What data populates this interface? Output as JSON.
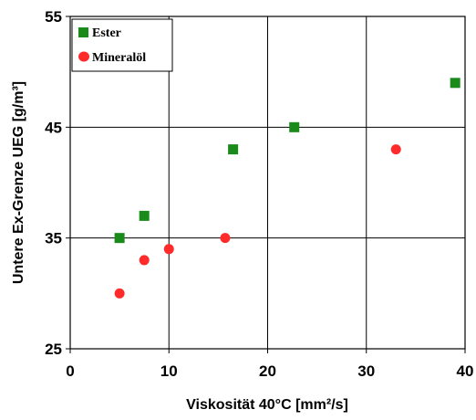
{
  "chart_data": {
    "type": "scatter",
    "xlabel": "Viskosität 40°C [mm²/s]",
    "ylabel": "Untere Ex-Grenze UEG [g/m³]",
    "xlim": [
      0,
      40
    ],
    "ylim": [
      25,
      55
    ],
    "x_ticks": [
      "0",
      "10",
      "20",
      "30",
      "40"
    ],
    "y_ticks": [
      "25",
      "35",
      "45",
      "55"
    ],
    "x_tick_values": [
      0,
      10,
      20,
      30,
      40
    ],
    "y_tick_values": [
      25,
      35,
      45,
      55
    ],
    "grid": true,
    "legend_position": "top-left",
    "series": [
      {
        "name": "Ester",
        "marker": "square",
        "color": "#1a8a1a",
        "points": [
          {
            "x": 5,
            "y": 35
          },
          {
            "x": 7.5,
            "y": 37
          },
          {
            "x": 16.5,
            "y": 43
          },
          {
            "x": 22.7,
            "y": 45
          },
          {
            "x": 39,
            "y": 49
          }
        ]
      },
      {
        "name": "Mineralöl",
        "marker": "circle",
        "color": "#ff2a2a",
        "points": [
          {
            "x": 5,
            "y": 30
          },
          {
            "x": 7.5,
            "y": 33
          },
          {
            "x": 10,
            "y": 34
          },
          {
            "x": 15.7,
            "y": 35
          },
          {
            "x": 33,
            "y": 43
          }
        ]
      }
    ]
  }
}
